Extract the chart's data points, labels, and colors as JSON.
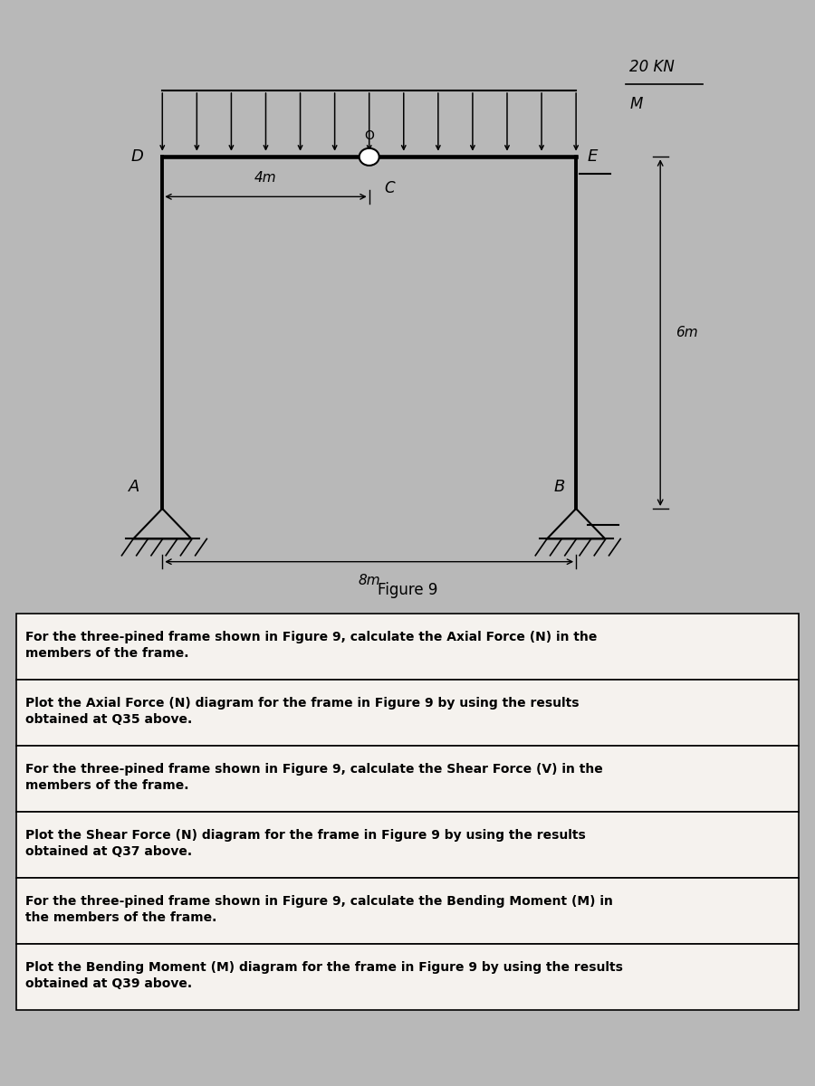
{
  "fig_width": 9.0,
  "fig_height": 12.0,
  "bg_color": "#b8b8b8",
  "panel_bg": "#f5f2ee",
  "frame_bg": "#ffffff",
  "table_bg": "#e8e4de",
  "load_label": "20 KN",
  "load_sublabel": "M",
  "dim_4m": "4m",
  "dim_8m": "8m",
  "dim_6m": "6m",
  "fig_caption": "Figure 9",
  "node_A": "A",
  "node_B": "B",
  "node_C": "C",
  "node_D": "D",
  "node_E": "E",
  "node_hinge": "O",
  "rows": [
    "For the three-pined frame shown in Figure 9, calculate the Axial Force (N) in the\nmembers of the frame.",
    "Plot the Axial Force (N) diagram for the frame in Figure 9 by using the results\nobtained at Q35 above.",
    "For the three-pined frame shown in Figure 9, calculate the Shear Force (V) in the\nmembers of the frame.",
    "Plot the Shear Force (N) diagram for the frame in Figure 9 by using the results\nobtained at Q37 above.",
    "For the three-pined frame shown in Figure 9, calculate the Bending Moment (M) in\nthe members of the frame.",
    "Plot the Bending Moment (M) diagram for the frame in Figure 9 by using the results\nobtained at Q39 above."
  ]
}
